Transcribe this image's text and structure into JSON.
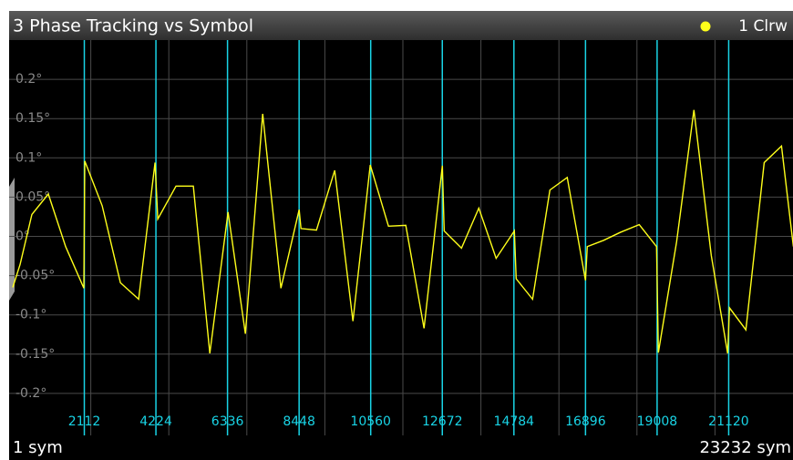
{
  "chart_data": {
    "type": "line",
    "title": "3 Phase Tracking vs Symbol",
    "trace_label": "1 Clrw",
    "x_start_label": "1 sym",
    "x_end_label": "23232 sym",
    "xlim": [
      1,
      23232
    ],
    "xticks": [
      2112,
      4224,
      6336,
      8448,
      10560,
      12672,
      14784,
      16896,
      19008,
      21120
    ],
    "ylim": [
      -0.25,
      0.25
    ],
    "yticks": [
      {
        "value": 0.2,
        "label": "0.2°"
      },
      {
        "value": 0.15,
        "label": "0.15°"
      },
      {
        "value": 0.1,
        "label": "0.1°"
      },
      {
        "value": 0.05,
        "label": "0.05°"
      },
      {
        "value": 0,
        "label": "0°"
      },
      {
        "value": -0.05,
        "label": "-0.05°"
      },
      {
        "value": -0.1,
        "label": "-0.1°"
      },
      {
        "value": -0.15,
        "label": "-0.15°"
      },
      {
        "value": -0.2,
        "label": "-0.2°"
      }
    ],
    "grid": true,
    "tick_color": "#19d4e6",
    "series": [
      {
        "name": "1 Clrw",
        "color": "#ffff1a",
        "x": [
          1,
          216,
          566,
          1050,
          1561,
          2099,
          2126,
          2638,
          3176,
          3714,
          4198,
          4279,
          4817,
          5328,
          5813,
          6351,
          6862,
          7373,
          7911,
          8449,
          8503,
          8960,
          9498,
          10036,
          10547,
          11085,
          11596,
          12134,
          12672,
          12726,
          13237,
          13748,
          14259,
          14797,
          14851,
          15335,
          15846,
          16357,
          16895,
          16949,
          17433,
          17916,
          18481,
          18992,
          19046,
          19584,
          20095,
          20606,
          21090,
          21144,
          21628,
          22166,
          22677,
          23027
        ],
        "values": [
          -0.065,
          -0.036,
          0.028,
          0.054,
          -0.013,
          -0.066,
          0.096,
          0.039,
          -0.059,
          -0.08,
          0.094,
          0.022,
          0.064,
          0.064,
          -0.149,
          0.031,
          -0.124,
          0.156,
          -0.066,
          0.034,
          0.01,
          0.008,
          0.084,
          -0.108,
          0.091,
          0.013,
          0.014,
          -0.117,
          0.09,
          0.007,
          -0.015,
          0.036,
          -0.028,
          0.007,
          -0.054,
          -0.08,
          0.059,
          0.075,
          -0.056,
          -0.013,
          -0.005,
          0.005,
          0.015,
          -0.013,
          -0.148,
          -0.007,
          0.161,
          -0.024,
          -0.149,
          -0.091,
          -0.119,
          0.094,
          0.115,
          -0.013
        ]
      }
    ]
  }
}
